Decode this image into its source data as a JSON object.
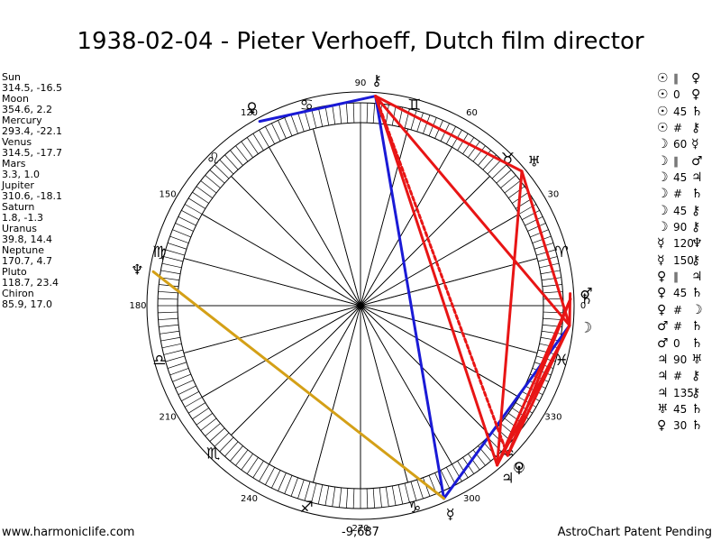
{
  "title": "1938-02-04 - Pieter Verhoeff, Dutch film director",
  "planets": [
    {
      "name": "Sun",
      "coords": "314.5, -16.5",
      "lon": 314.5,
      "glyph": "☉"
    },
    {
      "name": "Moon",
      "coords": "354.6, 2.2",
      "lon": 354.6,
      "glyph": "☽"
    },
    {
      "name": "Mercury",
      "coords": "293.4, -22.1",
      "lon": 293.4,
      "glyph": "☿"
    },
    {
      "name": "Venus",
      "coords": "314.5, -17.7",
      "lon": 314.5,
      "glyph": "♀"
    },
    {
      "name": "Mars",
      "coords": "3.3, 1.0",
      "lon": 3.3,
      "glyph": "♂"
    },
    {
      "name": "Jupiter",
      "coords": "310.6, -18.1",
      "lon": 310.6,
      "glyph": "♃"
    },
    {
      "name": "Saturn",
      "coords": "1.8, -1.3",
      "lon": 1.8,
      "glyph": "♄"
    },
    {
      "name": "Uranus",
      "coords": "39.8, 14.4",
      "lon": 39.8,
      "glyph": "♅"
    },
    {
      "name": "Neptune",
      "coords": "170.7, 4.7",
      "lon": 170.7,
      "glyph": "♆"
    },
    {
      "name": "Pluto",
      "coords": "118.7, 23.4",
      "lon": 118.7,
      "glyph": "♀"
    },
    {
      "name": "Chiron",
      "coords": "85.9, 17.0",
      "lon": 85.9,
      "glyph": "⚷"
    }
  ],
  "aspects": [
    {
      "p1": "☉",
      "aspect": "∥",
      "p2": "♀"
    },
    {
      "p1": "☉",
      "aspect": "0",
      "p2": "♀"
    },
    {
      "p1": "☉",
      "aspect": "45",
      "p2": "♄"
    },
    {
      "p1": "☉",
      "aspect": "#",
      "p2": "⚷"
    },
    {
      "p1": "☽",
      "aspect": "60",
      "p2": "☿"
    },
    {
      "p1": "☽",
      "aspect": "∥",
      "p2": "♂"
    },
    {
      "p1": "☽",
      "aspect": "45",
      "p2": "♃"
    },
    {
      "p1": "☽",
      "aspect": "#",
      "p2": "♄"
    },
    {
      "p1": "☽",
      "aspect": "45",
      "p2": "⚷"
    },
    {
      "p1": "☽",
      "aspect": "90",
      "p2": "⚷"
    },
    {
      "p1": "☿",
      "aspect": "120",
      "p2": "♆"
    },
    {
      "p1": "☿",
      "aspect": "150",
      "p2": "⚷"
    },
    {
      "p1": "♀",
      "aspect": "∥",
      "p2": "♃"
    },
    {
      "p1": "♀",
      "aspect": "45",
      "p2": "♄"
    },
    {
      "p1": "♀",
      "aspect": "#",
      "p2": "☽"
    },
    {
      "p1": "♂",
      "aspect": "#",
      "p2": "♄"
    },
    {
      "p1": "♂",
      "aspect": "0",
      "p2": "♄"
    },
    {
      "p1": "♃",
      "aspect": "90",
      "p2": "♅"
    },
    {
      "p1": "♃",
      "aspect": "#",
      "p2": "⚷"
    },
    {
      "p1": "♃",
      "aspect": "135",
      "p2": "⚷"
    },
    {
      "p1": "♅",
      "aspect": "45",
      "p2": "♄"
    },
    {
      "p1": "♀",
      "aspect": "30",
      "p2": "♄"
    }
  ],
  "degree_labels": [
    {
      "deg": 0,
      "text": "0"
    },
    {
      "deg": 30,
      "text": "30"
    },
    {
      "deg": 60,
      "text": "60"
    },
    {
      "deg": 90,
      "text": "90"
    },
    {
      "deg": 120,
      "text": "120"
    },
    {
      "deg": 150,
      "text": "150"
    },
    {
      "deg": 180,
      "text": "180"
    },
    {
      "deg": 210,
      "text": "210"
    },
    {
      "deg": 240,
      "text": "240"
    },
    {
      "deg": 270,
      "text": "270"
    },
    {
      "deg": 300,
      "text": "300"
    },
    {
      "deg": 330,
      "text": "330"
    }
  ],
  "zodiac": [
    {
      "deg": 15,
      "glyph": "♈"
    },
    {
      "deg": 45,
      "glyph": "♉"
    },
    {
      "deg": 75,
      "glyph": "♊"
    },
    {
      "deg": 105,
      "glyph": "♋"
    },
    {
      "deg": 135,
      "glyph": "♌"
    },
    {
      "deg": 165,
      "glyph": "♍"
    },
    {
      "deg": 195,
      "glyph": "♎"
    },
    {
      "deg": 225,
      "glyph": "♏"
    },
    {
      "deg": 255,
      "glyph": "♐"
    },
    {
      "deg": 285,
      "glyph": "♑"
    },
    {
      "deg": 315,
      "glyph": "♒"
    },
    {
      "deg": 345,
      "glyph": "♓"
    }
  ],
  "lines": [
    {
      "from": 85.9,
      "to": 118.7,
      "color": "#1a1ad6",
      "style": "solid"
    },
    {
      "from": 85.9,
      "to": 293.4,
      "color": "#1a1ad6",
      "style": "solid"
    },
    {
      "from": 293.4,
      "to": 354.6,
      "color": "#1a1ad6",
      "style": "solid"
    },
    {
      "from": 170.7,
      "to": 293.4,
      "color": "#d4a017",
      "style": "solid"
    },
    {
      "from": 85.9,
      "to": 39.8,
      "color": "#e81515",
      "style": "solid"
    },
    {
      "from": 85.9,
      "to": 354.6,
      "color": "#e81515",
      "style": "solid"
    },
    {
      "from": 85.9,
      "to": 314.5,
      "color": "#e81515",
      "style": "dotted"
    },
    {
      "from": 85.9,
      "to": 310.6,
      "color": "#e81515",
      "style": "solid"
    },
    {
      "from": 39.8,
      "to": 310.6,
      "color": "#e81515",
      "style": "solid"
    },
    {
      "from": 39.8,
      "to": 354.6,
      "color": "#e81515",
      "style": "solid"
    },
    {
      "from": 310.6,
      "to": 354.6,
      "color": "#e81515",
      "style": "solid"
    },
    {
      "from": 314.5,
      "to": 354.6,
      "color": "#e81515",
      "style": "solid"
    },
    {
      "from": 314.5,
      "to": 1.8,
      "color": "#e81515",
      "style": "solid"
    },
    {
      "from": 310.6,
      "to": 1.8,
      "color": "#e81515",
      "style": "solid"
    },
    {
      "from": 3.3,
      "to": 354.6,
      "color": "#e81515",
      "style": "solid"
    }
  ],
  "colors": {
    "red": "#e81515",
    "blue": "#1a1ad6",
    "gold": "#d4a017"
  },
  "center_value": "-9,687",
  "footer_left": "www.harmoniclife.com",
  "footer_right": "AstroChart Patent Pending"
}
